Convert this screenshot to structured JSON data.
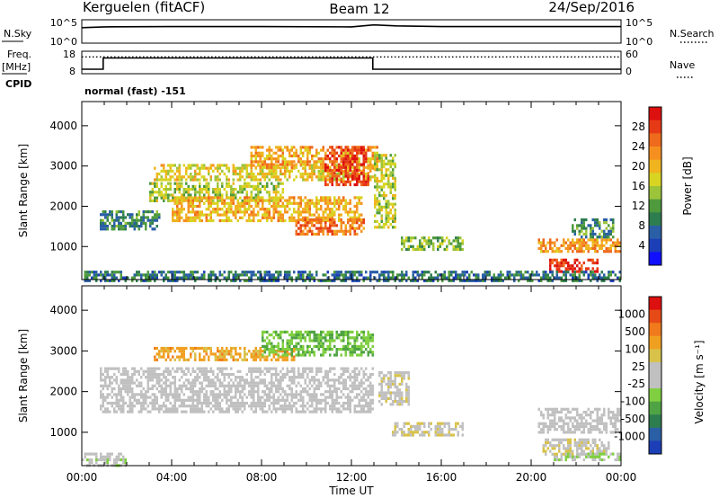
{
  "header": {
    "station": "Kerguelen (fitACF)",
    "beam": "Beam 12",
    "date": "24/Sep/2016"
  },
  "noise_panel": {
    "left_label": "N.Sky",
    "right_label": "N.Search",
    "y_ticks_left": [
      "10^5",
      "10^0"
    ],
    "y_ticks_right": [
      "10^5",
      "10^0"
    ],
    "legend_sky_style": "solid",
    "legend_search_style": "dotted"
  },
  "freq_panel": {
    "label_top": "Freq.",
    "label_unit": "[MHz]",
    "label_cpid": "CPID",
    "right_label": "Nave",
    "y_ticks_left": [
      "18",
      "8"
    ],
    "y_ticks_right": [
      "60",
      "0"
    ],
    "cpid_text": "normal (fast) -151"
  },
  "power_panel": {
    "ylabel": "Slant Range [km]",
    "colorbar_label": "Power [dB]",
    "colorbar_ticks": [
      "4",
      "8",
      "12",
      "16",
      "20",
      "24",
      "28"
    ],
    "colorbar_colors": [
      "#1010ff",
      "#1c3fb8",
      "#2a5fa6",
      "#2e7d4f",
      "#4e9a3d",
      "#9cc43a",
      "#d8d422",
      "#f0b41e",
      "#f59020",
      "#ee6a1c",
      "#e63a16",
      "#dd1010"
    ]
  },
  "velocity_panel": {
    "ylabel": "Slant Range [km]",
    "colorbar_label": "Velocity [m s⁻¹]",
    "colorbar_ticks": [
      "1000",
      "500",
      "100",
      "25",
      "-25",
      "-100",
      "-500",
      "-1000"
    ],
    "colorbar_colors": [
      "#1c3fb8",
      "#2a5fa6",
      "#2e7d4f",
      "#4fa344",
      "#7fcf40",
      "#c0c0c0",
      "#c0c0c0",
      "#d8c24a",
      "#f0a020",
      "#f07a1c",
      "#e64a16",
      "#dd1010"
    ]
  },
  "xaxis": {
    "label": "Time UT",
    "ticks": [
      "00:00",
      "04:00",
      "08:00",
      "12:00",
      "16:00",
      "20:00",
      "00:00"
    ]
  },
  "chart_data": [
    {
      "type": "line",
      "title": "N.Sky / N.Search",
      "x": [
        0,
        1,
        4,
        8,
        12,
        13,
        14,
        16,
        20,
        24
      ],
      "series": [
        {
          "name": "N.Sky",
          "style": "solid",
          "values": [
            2000,
            3000,
            3500,
            3400,
            3000,
            8000,
            5000,
            3500,
            3500,
            3500
          ]
        }
      ],
      "xlim": [
        0,
        24
      ],
      "yscale": "log",
      "ylim": [
        1,
        100000
      ]
    },
    {
      "type": "line",
      "title": "Freq. [MHz] / Nave",
      "x": [
        0,
        0.95,
        0.95,
        12.95,
        12.95,
        24
      ],
      "series": [
        {
          "name": "Freq.",
          "axis": "left",
          "style": "solid",
          "values": [
            10,
            10,
            15,
            15,
            10,
            10
          ]
        },
        {
          "name": "Nave",
          "axis": "right",
          "style": "dotted",
          "values": [
            45,
            45,
            45,
            45,
            45,
            45
          ]
        }
      ],
      "xlim": [
        0,
        24
      ],
      "ylim_left": [
        8,
        18
      ],
      "ylim_right": [
        0,
        60
      ]
    },
    {
      "type": "heatmap",
      "title": "Power [dB]",
      "quantity": "power",
      "xlabel": "Time UT",
      "ylabel": "Slant Range [km]",
      "xlim": [
        0,
        24
      ],
      "ylim": [
        180,
        4600
      ],
      "yticks": [
        1000,
        2000,
        3000,
        4000
      ],
      "zlim": [
        0,
        30
      ],
      "echo_regions": [
        {
          "t0": 3.2,
          "t1": 13.0,
          "r0": 2650,
          "r1": 3050,
          "value": 17
        },
        {
          "t0": 7.5,
          "t1": 13.2,
          "r0": 2950,
          "r1": 3500,
          "value": 20
        },
        {
          "t0": 10.8,
          "t1": 12.8,
          "r0": 2550,
          "r1": 3500,
          "value": 26
        },
        {
          "t0": 3.0,
          "t1": 9.0,
          "r0": 2150,
          "r1": 2600,
          "value": 14
        },
        {
          "t0": 4.0,
          "t1": 12.5,
          "r0": 1650,
          "r1": 2250,
          "value": 19
        },
        {
          "t0": 9.5,
          "t1": 12.6,
          "r0": 1300,
          "r1": 1700,
          "value": 23
        },
        {
          "t0": 0.8,
          "t1": 3.5,
          "r0": 1450,
          "r1": 1900,
          "value": 9
        },
        {
          "t0": 13.0,
          "t1": 14.0,
          "r0": 1500,
          "r1": 3300,
          "value": 15
        },
        {
          "t0": 14.2,
          "t1": 17.0,
          "r0": 900,
          "r1": 1250,
          "value": 13
        },
        {
          "t0": 20.3,
          "t1": 24.0,
          "r0": 900,
          "r1": 1200,
          "value": 21
        },
        {
          "t0": 20.8,
          "t1": 23.0,
          "r0": 400,
          "r1": 700,
          "value": 27
        },
        {
          "t0": 21.8,
          "t1": 23.7,
          "r0": 1250,
          "r1": 1700,
          "value": 10
        },
        {
          "t0": 0.0,
          "t1": 24.0,
          "r0": 180,
          "r1": 400,
          "value": 8
        }
      ]
    },
    {
      "type": "heatmap",
      "title": "Velocity [m s⁻¹]",
      "quantity": "velocity",
      "xlabel": "Time UT",
      "ylabel": "Slant Range [km]",
      "xlim": [
        0,
        24
      ],
      "ylim": [
        180,
        4600
      ],
      "yticks": [
        1000,
        2000,
        3000,
        4000
      ],
      "zlim": [
        -1000,
        1000
      ],
      "echo_regions": [
        {
          "t0": 3.2,
          "t1": 9.5,
          "r0": 2750,
          "r1": 3100,
          "value": 400
        },
        {
          "t0": 8.0,
          "t1": 13.0,
          "r0": 2900,
          "r1": 3500,
          "value": -300
        },
        {
          "t0": 0.8,
          "t1": 13.0,
          "r0": 1500,
          "r1": 2600,
          "value": 0
        },
        {
          "t0": 13.2,
          "t1": 14.5,
          "r0": 1700,
          "r1": 2500,
          "value": 80
        },
        {
          "t0": 13.8,
          "t1": 17.0,
          "r0": 950,
          "r1": 1250,
          "value": 150
        },
        {
          "t0": 20.3,
          "t1": 24.0,
          "r0": 1000,
          "r1": 1600,
          "value": 0
        },
        {
          "t0": 20.5,
          "t1": 23.5,
          "r0": 450,
          "r1": 850,
          "value": 120
        },
        {
          "t0": 21.0,
          "t1": 24.0,
          "r0": 300,
          "r1": 500,
          "value": -150
        },
        {
          "t0": 0.0,
          "t1": 2.0,
          "r0": 180,
          "r1": 500,
          "value": -80
        }
      ]
    }
  ]
}
